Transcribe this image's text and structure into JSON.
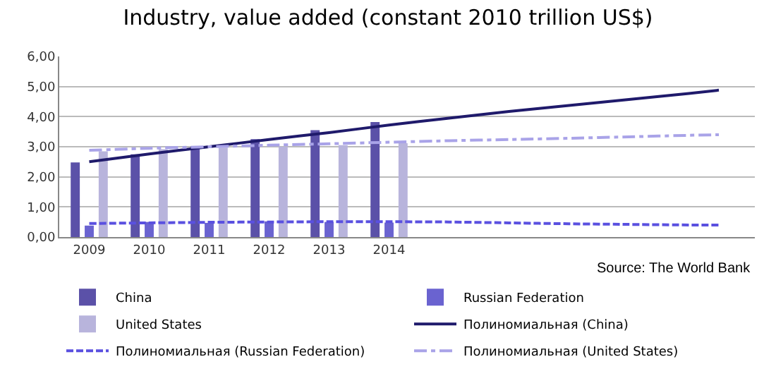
{
  "chart_data": {
    "type": "bar",
    "title": "Industry, value added (constant 2010 trillion US$)",
    "x": [
      2009,
      2010,
      2011,
      2012,
      2013,
      2014
    ],
    "xlim": [
      2008.5,
      2020.1
    ],
    "xticks": [
      2009,
      2010,
      2011,
      2012,
      2013,
      2014
    ],
    "ylim": [
      0,
      6
    ],
    "yticks": [
      {
        "value": 0,
        "label": "0,00"
      },
      {
        "value": 1,
        "label": "1,00"
      },
      {
        "value": 2,
        "label": "2,00"
      },
      {
        "value": 3,
        "label": "3,00"
      },
      {
        "value": 4,
        "label": "4,00"
      },
      {
        "value": 5,
        "label": "5,00"
      },
      {
        "value": 6,
        "label": "6,00"
      }
    ],
    "grid": "y",
    "legend": "bottom",
    "marker": "none",
    "series": [
      {
        "name": "China",
        "color": "#5b51a8",
        "values": [
          2.48,
          2.75,
          3.02,
          3.25,
          3.55,
          3.82
        ]
      },
      {
        "name": "Russian Federation",
        "color": "#6a63d0",
        "values": [
          0.38,
          0.5,
          0.47,
          0.52,
          0.5,
          0.48
        ]
      },
      {
        "name": "United States",
        "color": "#b8b4dc",
        "values": [
          2.85,
          2.92,
          2.97,
          3.0,
          3.05,
          3.12
        ]
      },
      {
        "name": "Полиномиальная (China)",
        "type": "line",
        "color": "#1f1a6b",
        "line_style": "solid",
        "x": [
          2009,
          2010,
          2011,
          2012,
          2013,
          2014,
          2015,
          2016,
          2017,
          2018,
          2019,
          2019.5
        ],
        "values": [
          2.5,
          2.76,
          3.0,
          3.24,
          3.47,
          3.72,
          3.95,
          4.17,
          4.37,
          4.57,
          4.77,
          4.88
        ]
      },
      {
        "name": "Полиномиальная (Russian Federation)",
        "type": "line",
        "color": "#5a50e0",
        "line_style": "dashed",
        "x": [
          2009,
          2010,
          2011,
          2012,
          2013,
          2014,
          2015,
          2016,
          2017,
          2018,
          2019,
          2019.5
        ],
        "values": [
          0.45,
          0.47,
          0.49,
          0.5,
          0.51,
          0.51,
          0.5,
          0.47,
          0.44,
          0.42,
          0.4,
          0.4
        ]
      },
      {
        "name": "Полиномиальная (United States)",
        "type": "line",
        "color": "#a9a3e8",
        "line_style": "dotted",
        "x": [
          2009,
          2010,
          2011,
          2012,
          2013,
          2014,
          2015,
          2016,
          2017,
          2018,
          2019,
          2019.5
        ],
        "values": [
          2.88,
          2.95,
          3.0,
          3.05,
          3.1,
          3.15,
          3.2,
          3.24,
          3.28,
          3.33,
          3.38,
          3.4
        ]
      }
    ],
    "annotations": [
      "Source: The World Bank"
    ]
  }
}
